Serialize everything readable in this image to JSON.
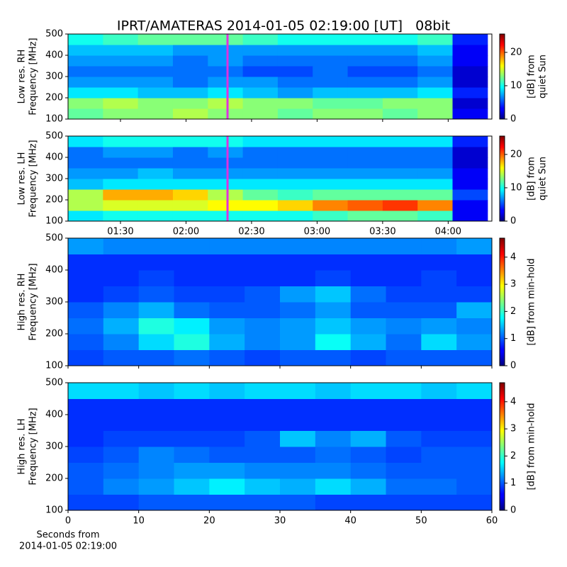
{
  "title": "IPRT/AMATERAS 2014-01-05 02:19:00 [UT]   08bit",
  "chart_data": [
    {
      "type": "heatmap",
      "ylabel": [
        "Low res. RH",
        "Frequency [MHz]"
      ],
      "ylim": [
        100,
        500
      ],
      "yticks": [
        100,
        200,
        300,
        400,
        500
      ],
      "xlim": [
        66,
        260
      ],
      "xticks": [
        {
          "value": 90,
          "label": "01:30"
        },
        {
          "value": 120,
          "label": "02:00"
        },
        {
          "value": 150,
          "label": "02:30"
        },
        {
          "value": 180,
          "label": "03:00"
        },
        {
          "value": 210,
          "label": "03:30"
        },
        {
          "value": 240,
          "label": "04:00"
        }
      ],
      "show_xtick_labels": false,
      "vline": {
        "x": 139,
        "color": "#e030e0"
      },
      "x": [
        74,
        90,
        106,
        122,
        138,
        154,
        170,
        186,
        202,
        218,
        234,
        250
      ],
      "y": [
        125,
        175,
        225,
        275,
        325,
        375,
        425,
        475
      ],
      "z": [
        [
          12,
          13,
          13,
          14,
          13,
          13,
          12,
          13,
          13,
          12,
          13,
          3
        ],
        [
          13,
          14,
          13,
          13,
          14,
          13,
          13,
          12,
          12,
          13,
          13,
          2
        ],
        [
          9,
          9,
          8,
          8,
          9,
          8,
          7,
          8,
          8,
          8,
          9,
          4
        ],
        [
          7,
          7,
          7,
          6,
          7,
          7,
          6,
          6,
          6,
          6,
          7,
          2
        ],
        [
          6,
          6,
          6,
          6,
          6,
          5,
          5,
          6,
          5,
          5,
          6,
          2
        ],
        [
          7,
          7,
          7,
          6,
          7,
          6,
          6,
          6,
          6,
          6,
          7,
          3
        ],
        [
          8,
          8,
          8,
          7,
          7,
          7,
          7,
          7,
          7,
          7,
          8,
          3
        ],
        [
          10,
          11,
          12,
          12,
          12,
          11,
          10,
          10,
          10,
          10,
          11,
          4
        ]
      ],
      "colorbar": {
        "label": [
          "[dB] from",
          "quiet Sun"
        ],
        "lim": [
          0,
          25.5
        ],
        "ticks": [
          0,
          10,
          20
        ]
      }
    },
    {
      "type": "heatmap",
      "ylabel": [
        "Low res. LH",
        "Frequency [MHz]"
      ],
      "ylim": [
        100,
        500
      ],
      "yticks": [
        100,
        200,
        300,
        400,
        500
      ],
      "xlim": [
        66,
        260
      ],
      "xticks": [
        {
          "value": 90,
          "label": "01:30"
        },
        {
          "value": 120,
          "label": "02:00"
        },
        {
          "value": 150,
          "label": "02:30"
        },
        {
          "value": 180,
          "label": "03:00"
        },
        {
          "value": 210,
          "label": "03:30"
        },
        {
          "value": 240,
          "label": "04:00"
        }
      ],
      "show_xtick_labels": true,
      "vline": {
        "x": 139,
        "color": "#e030e0"
      },
      "x": [
        74,
        90,
        106,
        122,
        138,
        154,
        170,
        186,
        202,
        218,
        234,
        250
      ],
      "y": [
        125,
        175,
        225,
        275,
        325,
        375,
        425,
        475
      ],
      "z": [
        [
          9,
          10,
          10,
          10,
          10,
          10,
          10,
          11,
          12,
          12,
          11,
          3
        ],
        [
          14,
          15,
          15,
          15,
          16,
          16,
          17,
          19,
          20,
          21,
          19,
          3
        ],
        [
          14,
          18,
          18,
          17,
          14,
          12,
          11,
          12,
          12,
          12,
          12,
          5
        ],
        [
          8,
          9,
          9,
          9,
          9,
          9,
          9,
          9,
          9,
          9,
          9,
          3
        ],
        [
          7,
          7,
          8,
          7,
          7,
          7,
          7,
          7,
          7,
          7,
          7,
          3
        ],
        [
          6,
          6,
          6,
          6,
          6,
          6,
          6,
          6,
          6,
          6,
          6,
          2
        ],
        [
          6,
          7,
          7,
          6,
          7,
          6,
          6,
          6,
          6,
          6,
          6,
          2
        ],
        [
          9,
          10,
          10,
          10,
          10,
          9,
          9,
          9,
          9,
          9,
          9,
          4
        ]
      ],
      "colorbar": {
        "label": [
          "[dB] from",
          "quiet Sun"
        ],
        "lim": [
          0,
          25.5
        ],
        "ticks": [
          0,
          10,
          20
        ]
      }
    },
    {
      "type": "heatmap",
      "ylabel": [
        "High res. RH",
        "Frequency [MHz]"
      ],
      "ylim": [
        100,
        500
      ],
      "yticks": [
        100,
        200,
        300,
        400,
        500
      ],
      "xlim": [
        0,
        60
      ],
      "xticks": [
        0,
        10,
        20,
        30,
        40,
        50,
        60
      ],
      "show_xtick_labels": false,
      "x": [
        2.5,
        7.5,
        12.5,
        17.5,
        22.5,
        27.5,
        32.5,
        37.5,
        42.5,
        47.5,
        52.5,
        57.5
      ],
      "y": [
        125,
        175,
        225,
        275,
        325,
        375,
        425,
        475
      ],
      "z": [
        [
          0.9,
          1.0,
          1.0,
          1.1,
          1.0,
          0.9,
          1.0,
          1.0,
          0.9,
          1.0,
          1.0,
          1.0
        ],
        [
          1.0,
          1.2,
          1.6,
          1.9,
          1.4,
          1.2,
          1.3,
          1.8,
          1.4,
          1.1,
          1.6,
          1.3
        ],
        [
          1.1,
          1.4,
          1.9,
          1.7,
          1.3,
          1.2,
          1.3,
          1.5,
          1.3,
          1.2,
          1.3,
          1.2
        ],
        [
          1.0,
          1.2,
          1.4,
          1.1,
          1.0,
          1.0,
          1.1,
          1.3,
          1.0,
          1.0,
          1.0,
          1.4
        ],
        [
          0.8,
          0.9,
          1.0,
          0.9,
          0.9,
          1.0,
          1.3,
          1.5,
          1.1,
          0.9,
          0.9,
          0.9
        ],
        [
          0.8,
          0.8,
          0.9,
          0.8,
          0.8,
          0.8,
          0.8,
          0.9,
          0.8,
          0.8,
          0.9,
          0.8
        ],
        [
          0.8,
          0.8,
          0.8,
          0.8,
          0.8,
          0.8,
          0.8,
          0.8,
          0.8,
          0.8,
          0.8,
          0.8
        ],
        [
          1.3,
          1.2,
          1.2,
          1.2,
          1.2,
          1.2,
          1.2,
          1.2,
          1.2,
          1.2,
          1.2,
          1.3
        ]
      ],
      "colorbar": {
        "label": [
          "[dB] from min-hold"
        ],
        "lim": [
          0,
          4.7
        ],
        "ticks": [
          0,
          1,
          2,
          3,
          4
        ]
      }
    },
    {
      "type": "heatmap",
      "ylabel": [
        "High res. LH",
        "Frequency [MHz]"
      ],
      "ylim": [
        100,
        500
      ],
      "yticks": [
        100,
        200,
        300,
        400,
        500
      ],
      "xlim": [
        0,
        60
      ],
      "xticks": [
        0,
        10,
        20,
        30,
        40,
        50,
        60
      ],
      "show_xtick_labels": true,
      "xlabel": [
        "Seconds from",
        "2014-01-05 02:19:00"
      ],
      "x": [
        2.5,
        7.5,
        12.5,
        17.5,
        22.5,
        27.5,
        32.5,
        37.5,
        42.5,
        47.5,
        52.5,
        57.5
      ],
      "y": [
        125,
        175,
        225,
        275,
        325,
        375,
        425,
        475
      ],
      "z": [
        [
          0.9,
          0.9,
          1.0,
          1.0,
          1.0,
          1.0,
          1.0,
          0.9,
          0.9,
          0.9,
          0.9,
          0.9
        ],
        [
          1.0,
          1.2,
          1.3,
          1.5,
          1.7,
          1.5,
          1.4,
          1.6,
          1.4,
          1.1,
          1.1,
          1.0
        ],
        [
          1.0,
          1.1,
          1.2,
          1.3,
          1.3,
          1.2,
          1.2,
          1.2,
          1.1,
          1.0,
          1.0,
          1.0
        ],
        [
          0.9,
          1.0,
          1.2,
          1.1,
          1.0,
          1.0,
          1.0,
          1.1,
          1.0,
          0.9,
          1.0,
          1.0
        ],
        [
          0.8,
          0.9,
          0.9,
          0.9,
          0.9,
          1.0,
          1.5,
          1.2,
          1.4,
          1.0,
          0.9,
          0.9
        ],
        [
          0.8,
          0.8,
          0.8,
          0.8,
          0.8,
          0.8,
          0.8,
          0.8,
          0.8,
          0.8,
          0.8,
          0.8
        ],
        [
          0.8,
          0.8,
          0.8,
          0.8,
          0.8,
          0.8,
          0.8,
          0.8,
          0.8,
          0.8,
          0.8,
          0.8
        ],
        [
          1.6,
          1.6,
          1.5,
          1.6,
          1.5,
          1.6,
          1.6,
          1.5,
          1.6,
          1.6,
          1.5,
          1.6
        ]
      ],
      "colorbar": {
        "label": [
          "[dB] from min-hold"
        ],
        "lim": [
          0,
          4.7
        ],
        "ticks": [
          0,
          1,
          2,
          3,
          4
        ]
      }
    }
  ]
}
